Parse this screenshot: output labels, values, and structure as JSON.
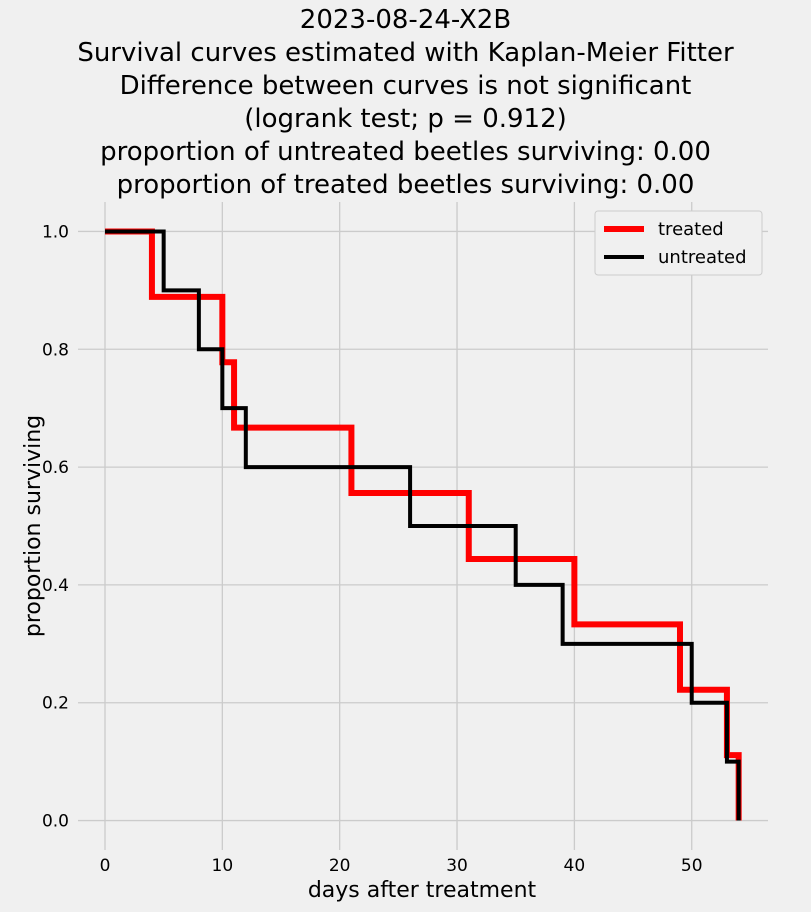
{
  "chart_data": {
    "type": "line",
    "title_lines": [
      "2023-08-24-X2B",
      "Survival curves estimated with Kaplan-Meier Fitter",
      "Difference between curves is not significant",
      "(logrank test; p = 0.912)",
      "proportion of untreated beetles surviving: 0.00",
      "proportion of treated beetles surviving: 0.00"
    ],
    "xlabel": "days after treatment",
    "ylabel": "proportion surviving",
    "xlim": [
      -2.3,
      56.5
    ],
    "ylim": [
      -0.05,
      1.05
    ],
    "x_ticks": [
      0,
      10,
      20,
      30,
      40,
      50
    ],
    "x_tick_labels": [
      "0",
      "10",
      "20",
      "30",
      "40",
      "50"
    ],
    "y_ticks": [
      0.0,
      0.2,
      0.4,
      0.6,
      0.8,
      1.0
    ],
    "y_tick_labels": [
      "0.0",
      "0.2",
      "0.4",
      "0.6",
      "0.8",
      "1.0"
    ],
    "grid": true,
    "legend_position": "top-right",
    "series": [
      {
        "name": "treated",
        "color": "#ff0000",
        "step": "post",
        "x": [
          0,
          4,
          10,
          11,
          21,
          31,
          40,
          49,
          53,
          54
        ],
        "y": [
          1.0,
          0.889,
          0.778,
          0.667,
          0.556,
          0.444,
          0.333,
          0.222,
          0.111,
          0.0
        ]
      },
      {
        "name": "untreated",
        "color": "#000000",
        "step": "post",
        "x": [
          0,
          5,
          8,
          10,
          12,
          26,
          35,
          39,
          50,
          53,
          54
        ],
        "y": [
          1.0,
          0.9,
          0.8,
          0.7,
          0.6,
          0.5,
          0.4,
          0.3,
          0.2,
          0.1,
          0.0
        ]
      }
    ]
  }
}
